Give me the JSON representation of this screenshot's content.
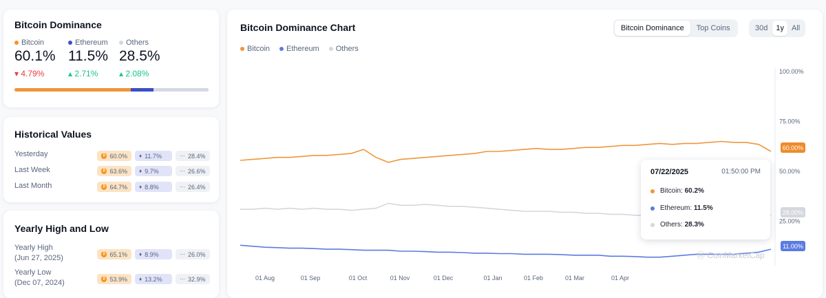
{
  "dominance": {
    "title": "Bitcoin Dominance",
    "items": [
      {
        "label": "Bitcoin",
        "value": "60.1%",
        "change": "4.79%",
        "direction": "down",
        "color": "#f7931a"
      },
      {
        "label": "Ethereum",
        "value": "11.5%",
        "change": "2.71%",
        "direction": "up",
        "color": "#3c4ec8"
      },
      {
        "label": "Others",
        "value": "28.5%",
        "change": "2.08%",
        "direction": "up",
        "color": "#cfd6e4"
      }
    ],
    "bar_fractions": [
      0.601,
      0.115,
      0.285
    ]
  },
  "historical": {
    "title": "Historical Values",
    "rows": [
      {
        "label": "Yesterday",
        "btc": "60.0%",
        "eth": "11.7%",
        "others": "28.4%"
      },
      {
        "label": "Last Week",
        "btc": "63.6%",
        "eth": "9.7%",
        "others": "26.6%"
      },
      {
        "label": "Last Month",
        "btc": "64.7%",
        "eth": "8.8%",
        "others": "26.4%"
      }
    ]
  },
  "yearly": {
    "title": "Yearly High and Low",
    "rows": [
      {
        "label": "Yearly High",
        "date": "(Jun 27, 2025)",
        "btc": "65.1%",
        "eth": "8.9%",
        "others": "26.0%"
      },
      {
        "label": "Yearly Low",
        "date": "(Dec 07, 2024)",
        "btc": "53.9%",
        "eth": "13.2%",
        "others": "32.9%"
      }
    ]
  },
  "chart_header": {
    "title": "Bitcoin Dominance Chart",
    "tabs": [
      "Bitcoin Dominance",
      "Top Coins"
    ],
    "active_tab": "Bitcoin Dominance",
    "ranges": [
      "30d",
      "1y",
      "All"
    ],
    "active_range": "1y"
  },
  "tooltip": {
    "date": "07/22/2025",
    "time": "01:50:00 PM",
    "rows": [
      {
        "label": "Bitcoin:",
        "value": "60.2%"
      },
      {
        "label": "Ethereum:",
        "value": "11.5%"
      },
      {
        "label": "Others:",
        "value": "28.3%"
      }
    ]
  },
  "watermark": "CoinMarketCap",
  "chart_data": {
    "type": "line",
    "ylim": [
      0,
      100
    ],
    "y_ticks": [
      "100.00%",
      "75.00%",
      "50.00%",
      "25.00%"
    ],
    "x_ticks": [
      "01 Aug",
      "01 Sep",
      "01 Oct",
      "01 Nov",
      "01 Dec",
      "01 Jan",
      "01 Feb",
      "01 Mar",
      "01 Apr"
    ],
    "current_labels": {
      "Bitcoin": "60.00%",
      "Others": "28.00%",
      "Ethereum": "11.00%"
    },
    "series": [
      {
        "name": "Bitcoin",
        "color": "#f0953a",
        "values": [
          55.5,
          56.0,
          56.5,
          57.0,
          57.0,
          57.5,
          58.0,
          58.0,
          58.5,
          59.0,
          61.0,
          57.0,
          54.5,
          56.0,
          56.5,
          57.0,
          57.5,
          58.0,
          58.5,
          59.0,
          60.0,
          60.0,
          60.5,
          61.0,
          61.5,
          61.0,
          61.0,
          61.5,
          62.0,
          62.0,
          62.5,
          63.0,
          63.0,
          63.5,
          64.0,
          63.5,
          64.0,
          64.0,
          64.5,
          65.0,
          64.5,
          64.5,
          63.5,
          60.0
        ]
      },
      {
        "name": "Ethereum",
        "color": "#5b7be0",
        "values": [
          13.0,
          12.5,
          12.0,
          11.8,
          11.5,
          11.5,
          11.3,
          11.0,
          11.0,
          10.8,
          10.5,
          10.5,
          10.5,
          10.0,
          10.0,
          9.8,
          9.5,
          9.5,
          9.3,
          9.0,
          9.0,
          8.8,
          8.8,
          8.5,
          8.5,
          8.5,
          8.3,
          8.0,
          8.0,
          8.0,
          7.5,
          7.5,
          7.3,
          7.0,
          7.0,
          7.5,
          8.0,
          8.5,
          8.5,
          8.5,
          8.5,
          9.0,
          9.5,
          11.0
        ]
      },
      {
        "name": "Others",
        "color": "#d4d7dd",
        "values": [
          31.0,
          31.0,
          31.5,
          31.0,
          31.5,
          31.0,
          31.5,
          31.0,
          31.0,
          30.5,
          31.0,
          31.5,
          34.0,
          33.0,
          33.0,
          33.5,
          33.0,
          32.5,
          32.5,
          32.0,
          31.5,
          31.0,
          30.5,
          30.0,
          30.0,
          30.0,
          29.5,
          29.5,
          29.0,
          29.0,
          28.5,
          28.5,
          28.0,
          28.0,
          28.0,
          27.5,
          27.5,
          27.5,
          27.0,
          27.0,
          27.0,
          26.5,
          26.5,
          28.0
        ]
      }
    ]
  }
}
